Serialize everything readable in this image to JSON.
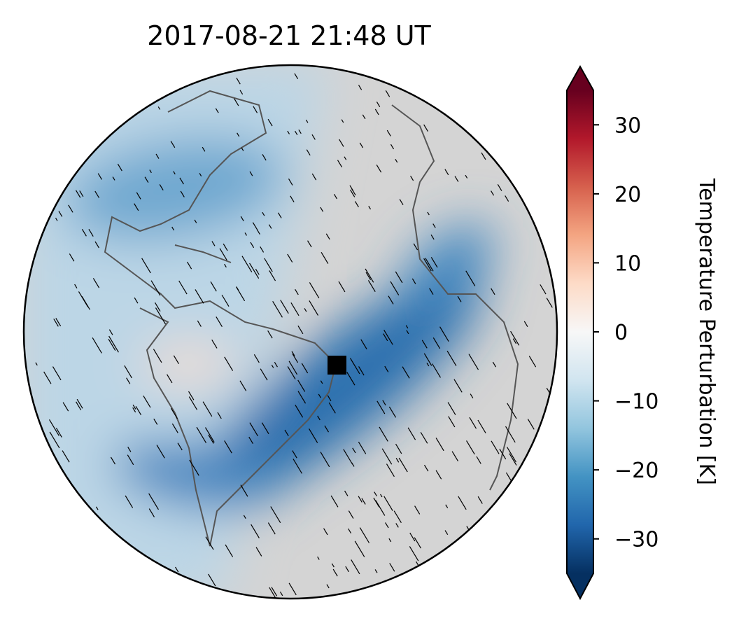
{
  "title": "2017-08-21  21:48 UT",
  "colorbar": {
    "label": "Temperature Perturbation [K]",
    "lim": [
      -35,
      35
    ],
    "ticks": [
      {
        "value": -30,
        "label": "−30"
      },
      {
        "value": -20,
        "label": "−20"
      },
      {
        "value": -10,
        "label": "−10"
      },
      0,
      10,
      20,
      30
    ]
  }
}
